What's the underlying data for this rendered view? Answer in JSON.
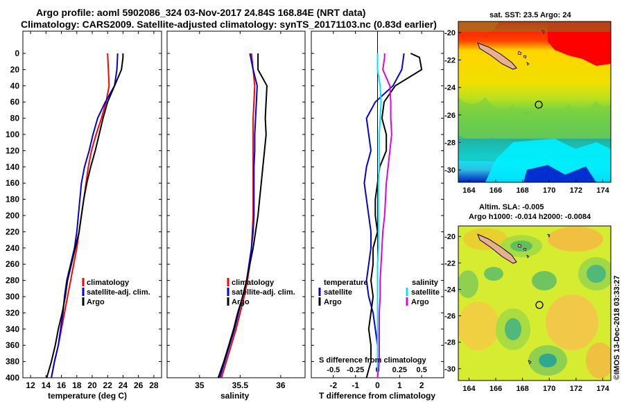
{
  "header": {
    "line1": "Argo profile: aoml 5902086_324 03-Nov-2017 24.84S 168.84E (NRT data)",
    "line2": "Climatology: CARS2009. Satellite-adjusted climatology: synTS_20171103.nc (0.83d earlier)"
  },
  "colors": {
    "climatology": "#ff0000",
    "satellite": "#0000dd",
    "argo": "#000000",
    "cyan": "#00e5ff",
    "magenta": "#e000e0"
  },
  "map_top": {
    "title": "sat. SST: 23.5 Argo: 24",
    "xticks": [
      "164",
      "166",
      "168",
      "170",
      "172",
      "174"
    ],
    "yticks": [
      "-20",
      "-22",
      "-24",
      "-26",
      "-28",
      "-30"
    ]
  },
  "map_bottom": {
    "title1": "Altim. SLA: -0.005",
    "title2": "Argo h1000: -0.014 h2000: -0.0084",
    "xticks": [
      "164",
      "166",
      "168",
      "170",
      "172",
      "174"
    ],
    "yticks": [
      "-20",
      "-22",
      "-24",
      "-26",
      "-28",
      "-30"
    ]
  },
  "credit": "©IMOS 13-Dec-2018 03:33:27",
  "depth_ticks": [
    "0",
    "20",
    "40",
    "60",
    "80",
    "100",
    "120",
    "140",
    "160",
    "180",
    "200",
    "220",
    "240",
    "260",
    "280",
    "300",
    "320",
    "340",
    "360",
    "380",
    "400"
  ],
  "legend": {
    "climatology": "climatology",
    "satellite_adj": "satellite-adj. clim.",
    "argo": "Argo"
  },
  "diff_legend": {
    "temperature": "temperature",
    "salinity": "salinity",
    "satellite": "satellite",
    "argo": "Argo"
  },
  "chart_data": [
    {
      "type": "line",
      "title": "",
      "xlabel": "temperature (deg C)",
      "ylabel": "depth",
      "xlim": [
        11,
        29
      ],
      "ylim": [
        400,
        0
      ],
      "xticks": [
        "12",
        "14",
        "16",
        "18",
        "20",
        "22",
        "24",
        "26",
        "28"
      ],
      "series": [
        {
          "name": "climatology",
          "depth": [
            0,
            20,
            40,
            60,
            80,
            100,
            120,
            140,
            160,
            180,
            200,
            220,
            240,
            260,
            280,
            300,
            320,
            340,
            360,
            380,
            400
          ],
          "values": [
            22.0,
            22.1,
            22.2,
            21.8,
            21.2,
            20.5,
            19.9,
            19.5,
            19.2,
            18.9,
            18.6,
            18.3,
            18.0,
            17.6,
            17.2,
            16.8,
            16.4,
            16.0,
            15.6,
            15.1,
            14.7
          ]
        },
        {
          "name": "satellite-adj. clim.",
          "depth": [
            0,
            20,
            40,
            60,
            80,
            100,
            120,
            140,
            160,
            180,
            200,
            220,
            240,
            260,
            280,
            300,
            320,
            340,
            360,
            380,
            400
          ],
          "values": [
            23.3,
            23.2,
            22.9,
            21.7,
            20.7,
            20.1,
            19.6,
            19.0,
            18.6,
            18.4,
            18.2,
            18.0,
            17.7,
            17.2,
            16.7,
            16.4,
            16.2,
            15.9,
            15.6,
            15.1,
            14.7
          ]
        },
        {
          "name": "Argo",
          "depth": [
            0,
            5,
            20,
            40,
            60,
            80,
            100,
            120,
            140,
            160,
            180,
            200,
            220,
            240,
            260,
            280,
            300,
            320,
            340,
            360,
            380,
            400
          ],
          "values": [
            24.0,
            24.0,
            23.8,
            22.9,
            22.0,
            21.4,
            20.9,
            20.4,
            19.8,
            19.3,
            18.9,
            18.6,
            18.3,
            17.8,
            17.3,
            16.8,
            16.5,
            16.1,
            15.6,
            15.2,
            14.7,
            14.1
          ]
        }
      ]
    },
    {
      "type": "line",
      "title": "",
      "xlabel": "salinity",
      "ylabel": "depth",
      "xlim": [
        34.6,
        36.3
      ],
      "ylim": [
        400,
        0
      ],
      "xticks": [
        "35",
        "35.5",
        "36"
      ],
      "series": [
        {
          "name": "climatology",
          "depth": [
            0,
            20,
            40,
            60,
            80,
            100,
            120,
            140,
            160,
            180,
            200,
            220,
            240,
            260,
            280,
            300,
            320,
            340,
            360,
            380,
            400
          ],
          "values": [
            35.64,
            35.66,
            35.68,
            35.67,
            35.66,
            35.66,
            35.66,
            35.66,
            35.66,
            35.66,
            35.66,
            35.65,
            35.64,
            35.62,
            35.59,
            35.55,
            35.5,
            35.45,
            35.39,
            35.33,
            35.27
          ]
        },
        {
          "name": "satellite-adj. clim.",
          "depth": [
            0,
            20,
            40,
            60,
            80,
            100,
            120,
            140,
            160,
            180,
            200,
            220,
            240,
            260,
            280,
            300,
            320,
            340,
            360,
            380,
            400
          ],
          "values": [
            35.62,
            35.66,
            35.71,
            35.7,
            35.69,
            35.68,
            35.68,
            35.67,
            35.67,
            35.67,
            35.67,
            35.66,
            35.64,
            35.61,
            35.58,
            35.53,
            35.48,
            35.43,
            35.37,
            35.31,
            35.25
          ]
        },
        {
          "name": "Argo",
          "depth": [
            0,
            5,
            20,
            40,
            60,
            80,
            100,
            120,
            140,
            160,
            180,
            200,
            220,
            240,
            260,
            280,
            300,
            320,
            340,
            360,
            380,
            400
          ],
          "values": [
            35.72,
            35.72,
            35.72,
            35.83,
            35.82,
            35.81,
            35.82,
            35.8,
            35.78,
            35.76,
            35.74,
            35.72,
            35.69,
            35.66,
            35.62,
            35.58,
            35.53,
            35.47,
            35.42,
            35.36,
            35.3,
            35.23
          ]
        }
      ]
    },
    {
      "type": "line",
      "title": "",
      "xlabel": "T difference from climatology",
      "x2label": "S difference from climatology",
      "xlim": [
        -3,
        3
      ],
      "ylim": [
        400,
        0
      ],
      "xticks": [
        "-2",
        "-1",
        "0",
        "1",
        "2"
      ],
      "x2ticks": [
        "-0.5",
        "-0.25",
        "0",
        "0.25",
        "0.5"
      ],
      "series": [
        {
          "name": "temperature satellite",
          "axis": "T",
          "depth": [
            0,
            20,
            40,
            60,
            80,
            100,
            120,
            140,
            160,
            180,
            200,
            220,
            240,
            260,
            280,
            300,
            320,
            340,
            360,
            380,
            400
          ],
          "values": [
            1.2,
            1.1,
            0.7,
            -0.1,
            -0.5,
            -0.4,
            -0.3,
            -0.5,
            -0.6,
            -0.5,
            -0.4,
            -0.3,
            -0.3,
            -0.4,
            -0.5,
            -0.4,
            -0.2,
            -0.1,
            0.0,
            0.0,
            0.0
          ]
        },
        {
          "name": "temperature Argo",
          "axis": "T",
          "depth": [
            0,
            5,
            20,
            40,
            60,
            80,
            100,
            120,
            140,
            160,
            180,
            200,
            220,
            240,
            260,
            280,
            300,
            320,
            340,
            360,
            380,
            400
          ],
          "values": [
            1.5,
            1.9,
            2.0,
            0.8,
            0.3,
            0.2,
            0.4,
            0.4,
            0.1,
            0.0,
            -0.1,
            -0.1,
            0.0,
            -0.2,
            -0.2,
            -0.3,
            -0.2,
            -0.3,
            -0.4,
            -0.3,
            -0.3,
            -0.5
          ]
        },
        {
          "name": "salinity satellite",
          "axis": "S",
          "depth": [
            0,
            20,
            40,
            60,
            80,
            100,
            120,
            140,
            160,
            180,
            200,
            220,
            240,
            260,
            280,
            300,
            320,
            340,
            360,
            380,
            400
          ],
          "values": [
            0.0,
            0.0,
            0.03,
            0.04,
            0.03,
            0.02,
            0.02,
            0.02,
            0.01,
            0.01,
            0.01,
            0.01,
            0.01,
            0.0,
            0.0,
            0.0,
            0.0,
            0.0,
            0.0,
            0.0,
            0.0
          ]
        },
        {
          "name": "salinity Argo",
          "axis": "S",
          "depth": [
            0,
            5,
            20,
            40,
            60,
            80,
            100,
            120,
            140,
            160,
            180,
            200,
            220,
            240,
            260,
            280,
            300,
            320,
            340,
            360,
            380,
            400
          ],
          "values": [
            0.08,
            0.08,
            0.06,
            0.14,
            0.15,
            0.15,
            0.16,
            0.14,
            0.12,
            0.1,
            0.09,
            0.08,
            0.06,
            0.05,
            0.04,
            0.03,
            0.03,
            0.02,
            0.02,
            0.02,
            0.02,
            0.0
          ]
        }
      ]
    }
  ]
}
